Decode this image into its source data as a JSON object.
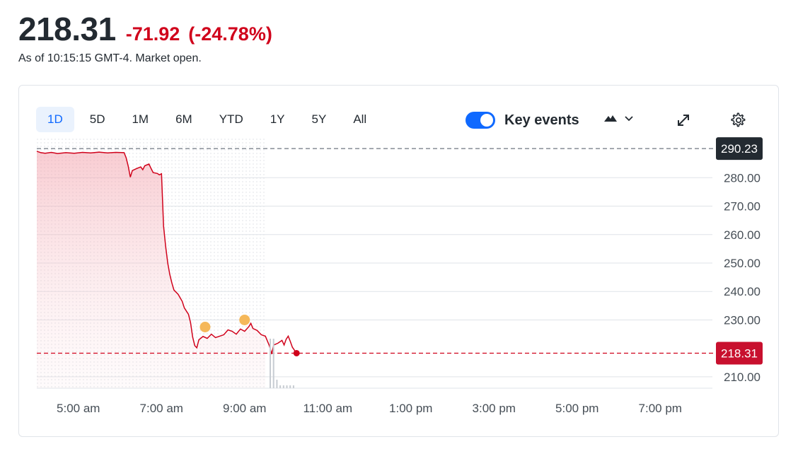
{
  "quote": {
    "price": "218.31",
    "change": "-71.92",
    "change_percent": "(-24.78%)",
    "as_of": "As of 10:15:15 GMT-4. Market open."
  },
  "toolbar": {
    "ranges": [
      "1D",
      "5D",
      "1M",
      "6M",
      "YTD",
      "1Y",
      "5Y",
      "All"
    ],
    "active_range": "1D",
    "key_events_label": "Key events",
    "key_events_on": true,
    "accent_color": "#0f69ff"
  },
  "chart_data": {
    "type": "line",
    "y_ticks": [
      "280.00",
      "270.00",
      "260.00",
      "250.00",
      "240.00",
      "230.00",
      "210.00"
    ],
    "x_ticks": [
      "5:00 am",
      "7:00 am",
      "9:00 am",
      "11:00 am",
      "1:00 pm",
      "3:00 pm",
      "5:00 pm",
      "7:00 pm"
    ],
    "ylim": [
      206,
      293
    ],
    "x_range_hours": [
      4,
      20
    ],
    "previous_close": {
      "label": "290.23",
      "value": 290.23,
      "color": "#232a31"
    },
    "current": {
      "label": "218.31",
      "value": 218.31,
      "color": "#c8102e"
    },
    "premarket_end_hour": 9.5,
    "line_color": "#d0021b",
    "event_marker_color": "#f5b85a",
    "series": [
      {
        "values": [
          [
            4.0,
            289.3
          ],
          [
            4.1,
            288.8
          ],
          [
            4.2,
            288.6
          ],
          [
            4.35,
            288.9
          ],
          [
            4.5,
            288.5
          ],
          [
            4.7,
            288.8
          ],
          [
            4.9,
            288.6
          ],
          [
            5.1,
            288.9
          ],
          [
            5.3,
            288.7
          ],
          [
            5.5,
            289.0
          ],
          [
            5.7,
            288.7
          ],
          [
            5.9,
            288.9
          ],
          [
            6.1,
            288.8
          ],
          [
            6.15,
            287.0
          ],
          [
            6.2,
            284.0
          ],
          [
            6.25,
            280.2
          ],
          [
            6.3,
            282.5
          ],
          [
            6.4,
            283.2
          ],
          [
            6.5,
            283.8
          ],
          [
            6.55,
            282.8
          ],
          [
            6.6,
            284.2
          ],
          [
            6.7,
            284.8
          ],
          [
            6.75,
            283.2
          ],
          [
            6.8,
            281.8
          ],
          [
            6.9,
            281.5
          ],
          [
            6.95,
            281.0
          ],
          [
            7.0,
            281.4
          ],
          [
            7.05,
            263.0
          ],
          [
            7.1,
            256.0
          ],
          [
            7.15,
            250.0
          ],
          [
            7.2,
            246.0
          ],
          [
            7.25,
            243.0
          ],
          [
            7.3,
            240.5
          ],
          [
            7.4,
            239.0
          ],
          [
            7.5,
            236.5
          ],
          [
            7.55,
            234.2
          ],
          [
            7.65,
            232.0
          ],
          [
            7.7,
            229.0
          ],
          [
            7.75,
            224.0
          ],
          [
            7.8,
            221.0
          ],
          [
            7.85,
            220.2
          ],
          [
            7.9,
            223.0
          ],
          [
            8.0,
            224.2
          ],
          [
            8.1,
            223.5
          ],
          [
            8.2,
            225.0
          ],
          [
            8.3,
            223.8
          ],
          [
            8.4,
            224.3
          ],
          [
            8.5,
            224.8
          ],
          [
            8.6,
            226.5
          ],
          [
            8.7,
            226.0
          ],
          [
            8.8,
            225.0
          ],
          [
            8.9,
            226.8
          ],
          [
            9.0,
            226.0
          ],
          [
            9.1,
            227.6
          ],
          [
            9.15,
            228.8
          ],
          [
            9.2,
            227.0
          ],
          [
            9.3,
            226.3
          ],
          [
            9.4,
            224.8
          ],
          [
            9.5,
            224.3
          ],
          [
            9.55,
            222.5
          ],
          [
            9.6,
            220.8
          ],
          [
            9.65,
            218.0
          ],
          [
            9.7,
            221.2
          ],
          [
            9.8,
            221.8
          ],
          [
            9.9,
            222.8
          ],
          [
            9.95,
            221.2
          ],
          [
            10.0,
            223.2
          ],
          [
            10.05,
            224.3
          ],
          [
            10.1,
            222.4
          ],
          [
            10.15,
            220.4
          ],
          [
            10.25,
            218.31
          ]
        ]
      }
    ],
    "events": [
      {
        "x": 8.05,
        "y": 227.5
      },
      {
        "x": 9.0,
        "y": 230.0
      }
    ]
  }
}
